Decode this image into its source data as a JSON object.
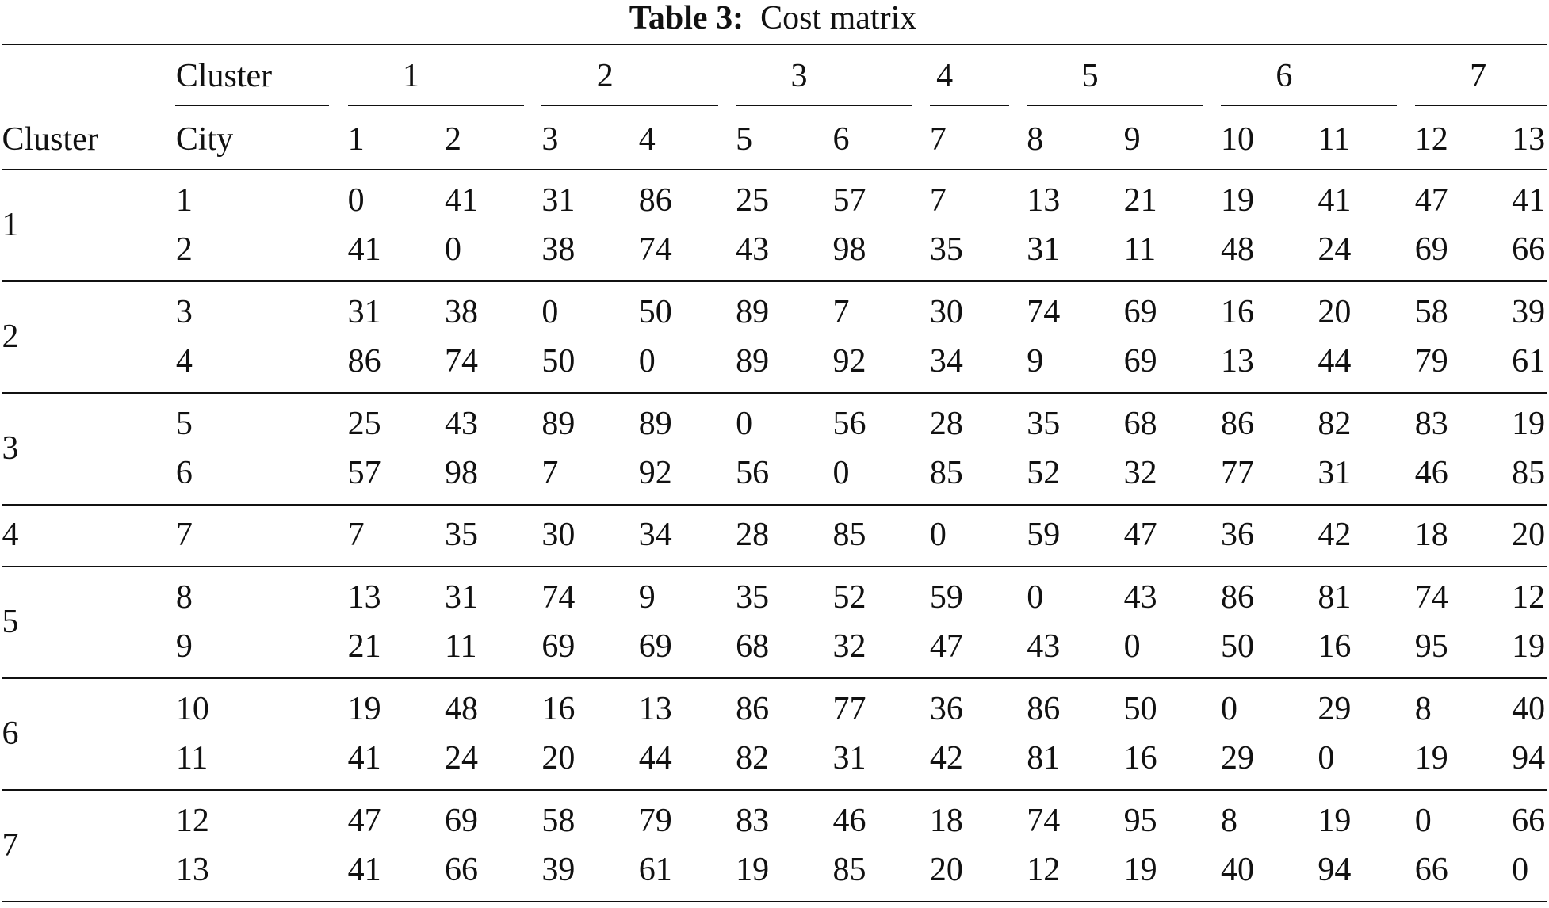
{
  "caption": {
    "label": "Table 3:",
    "text": "Cost matrix"
  },
  "header": {
    "cluster_row": {
      "label": "Cluster",
      "clusters": [
        "1",
        "2",
        "3",
        "4",
        "5",
        "6",
        "7"
      ]
    },
    "city_row": {
      "cluster_label": "Cluster",
      "city_label": "City",
      "cities": [
        "1",
        "2",
        "3",
        "4",
        "5",
        "6",
        "7",
        "8",
        "9",
        "10",
        "11",
        "12",
        "13"
      ]
    }
  },
  "groups": [
    {
      "cluster": "1",
      "rows": [
        {
          "city": "1",
          "costs": [
            0,
            41,
            31,
            86,
            25,
            57,
            7,
            13,
            21,
            19,
            41,
            47,
            41
          ]
        },
        {
          "city": "2",
          "costs": [
            41,
            0,
            38,
            74,
            43,
            98,
            35,
            31,
            11,
            48,
            24,
            69,
            66
          ]
        }
      ]
    },
    {
      "cluster": "2",
      "rows": [
        {
          "city": "3",
          "costs": [
            31,
            38,
            0,
            50,
            89,
            7,
            30,
            74,
            69,
            16,
            20,
            58,
            39
          ]
        },
        {
          "city": "4",
          "costs": [
            86,
            74,
            50,
            0,
            89,
            92,
            34,
            9,
            69,
            13,
            44,
            79,
            61
          ]
        }
      ]
    },
    {
      "cluster": "3",
      "rows": [
        {
          "city": "5",
          "costs": [
            25,
            43,
            89,
            89,
            0,
            56,
            28,
            35,
            68,
            86,
            82,
            83,
            19
          ]
        },
        {
          "city": "6",
          "costs": [
            57,
            98,
            7,
            92,
            56,
            0,
            85,
            52,
            32,
            77,
            31,
            46,
            85
          ]
        }
      ]
    },
    {
      "cluster": "4",
      "rows": [
        {
          "city": "7",
          "costs": [
            7,
            35,
            30,
            34,
            28,
            85,
            0,
            59,
            47,
            36,
            42,
            18,
            20
          ]
        }
      ]
    },
    {
      "cluster": "5",
      "rows": [
        {
          "city": "8",
          "costs": [
            13,
            31,
            74,
            9,
            35,
            52,
            59,
            0,
            43,
            86,
            81,
            74,
            12
          ]
        },
        {
          "city": "9",
          "costs": [
            21,
            11,
            69,
            69,
            68,
            32,
            47,
            43,
            0,
            50,
            16,
            95,
            19
          ]
        }
      ]
    },
    {
      "cluster": "6",
      "rows": [
        {
          "city": "10",
          "costs": [
            19,
            48,
            16,
            13,
            86,
            77,
            36,
            86,
            50,
            0,
            29,
            8,
            40
          ]
        },
        {
          "city": "11",
          "costs": [
            41,
            24,
            20,
            44,
            82,
            31,
            42,
            81,
            16,
            29,
            0,
            19,
            94
          ]
        }
      ]
    },
    {
      "cluster": "7",
      "rows": [
        {
          "city": "12",
          "costs": [
            47,
            69,
            58,
            79,
            83,
            46,
            18,
            74,
            95,
            8,
            19,
            0,
            66
          ]
        },
        {
          "city": "13",
          "costs": [
            41,
            66,
            39,
            61,
            19,
            85,
            20,
            12,
            19,
            40,
            94,
            66,
            0
          ]
        }
      ]
    }
  ]
}
